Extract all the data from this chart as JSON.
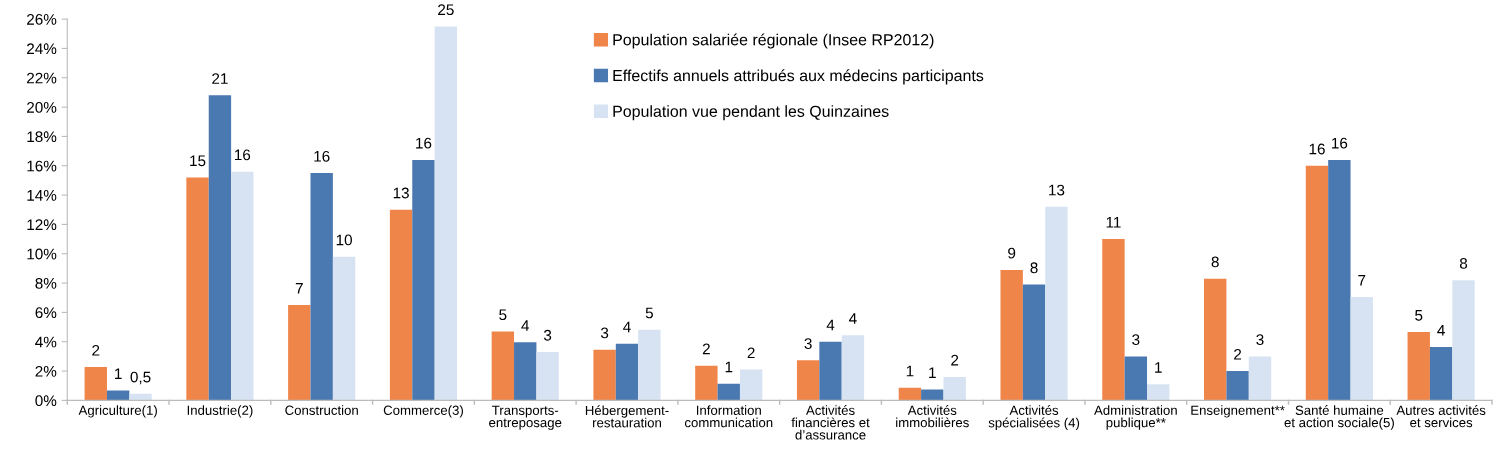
{
  "chart_data": {
    "type": "bar",
    "categories": [
      "Agriculture(1)",
      "Industrie(2)",
      "Construction",
      "Commerce(3)",
      "Transports-\nentreposage",
      "Hébergement-\nrestauration",
      "Information\ncommunication",
      "Activités\nfinancières et\nd’assurance",
      "Activités\nimmobilières",
      "Activités\nspécialisées (4)",
      "Administration\npublique**",
      "Enseignement**",
      "Santé humaine\net action sociale(5)",
      "Autres activités\net services"
    ],
    "series": [
      {
        "name": "Population salariée régionale (Insee RP2012)",
        "color": "#f0854a",
        "values": [
          2.27,
          15.2,
          6.5,
          13.0,
          4.7,
          3.46,
          2.37,
          2.73,
          0.86,
          8.9,
          11.0,
          8.3,
          16.0,
          4.66
        ],
        "value_labels": [
          "2",
          "15",
          "7",
          "13",
          "5",
          "3",
          "2",
          "3",
          "1",
          "9",
          "11",
          "8",
          "16",
          "5"
        ]
      },
      {
        "name": "Effectifs annuels attribués aux médecins participants",
        "color": "#4a78b0",
        "values": [
          0.68,
          20.8,
          15.5,
          16.4,
          3.96,
          3.87,
          1.14,
          4.0,
          0.75,
          7.9,
          3.0,
          2.0,
          16.4,
          3.64
        ],
        "value_labels": [
          "1",
          "21",
          "16",
          "16",
          "4",
          "4",
          "1",
          "4",
          "1",
          "8",
          "3",
          "2",
          "16",
          "4"
        ]
      },
      {
        "name": "Population vue pendant les Quinzaines",
        "color": "#d7e3f2",
        "values": [
          0.45,
          15.6,
          9.8,
          25.5,
          3.3,
          4.82,
          2.1,
          4.44,
          1.6,
          13.2,
          1.1,
          3.0,
          7.05,
          8.2
        ],
        "value_labels": [
          "0,5",
          "16",
          "10",
          "25",
          "3",
          "5",
          "2",
          "4",
          "2",
          "13",
          "1",
          "3",
          "7",
          "8"
        ]
      }
    ],
    "ylim": [
      0,
      26
    ],
    "yticks": [
      {
        "value": 0,
        "label": "0%"
      },
      {
        "value": 2,
        "label": "2%"
      },
      {
        "value": 4,
        "label": "4%"
      },
      {
        "value": 6,
        "label": "6%"
      },
      {
        "value": 8,
        "label": "8%"
      },
      {
        "value": 10,
        "label": "10%"
      },
      {
        "value": 12,
        "label": "12%"
      },
      {
        "value": 14,
        "label": "14%"
      },
      {
        "value": 16,
        "label": "16%"
      },
      {
        "value": 18,
        "label": "18%"
      },
      {
        "value": 20,
        "label": "20%"
      },
      {
        "value": 22,
        "label": "22%"
      },
      {
        "value": 24,
        "label": "24%"
      },
      {
        "value": 26,
        "label": "26%"
      }
    ],
    "grid": false,
    "legend": "top"
  }
}
